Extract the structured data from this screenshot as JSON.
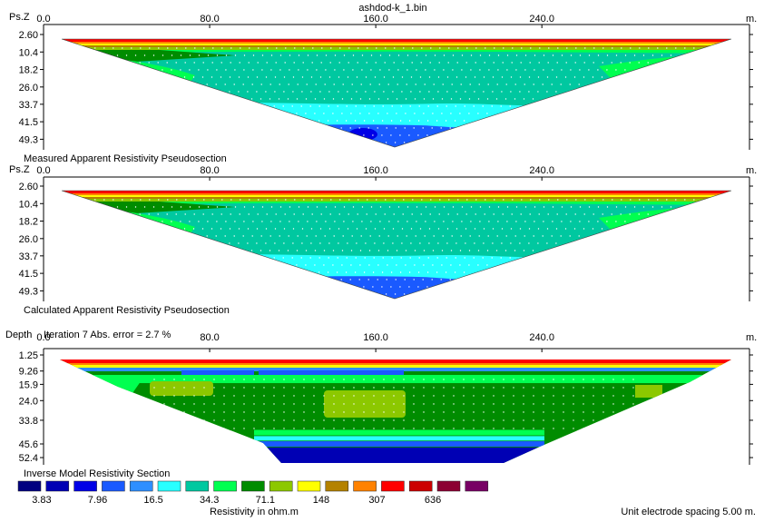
{
  "title": "ashdod-k_1.bin",
  "x_unit": "m.",
  "x_ticks": [
    "0.0",
    "80.0",
    "160.0",
    "240.0"
  ],
  "x_tick_values": [
    0,
    80,
    160,
    240
  ],
  "x_range": [
    0,
    340
  ],
  "palette": [
    "#000080",
    "#0000b4",
    "#0000e6",
    "#1a5aff",
    "#2e8fff",
    "#28ffff",
    "#00c8a0",
    "#00ff50",
    "#008c00",
    "#8cc800",
    "#ffff00",
    "#b48200",
    "#ff8200",
    "#ff0000",
    "#cc0000",
    "#8c0032",
    "#780064"
  ],
  "panels": [
    {
      "axis_label": "Ps.Z",
      "caption": "Measured Apparent Resistivity Pseudosection",
      "subtitle": "",
      "depth_ticks": [
        "2.60",
        "10.4",
        "18.2",
        "26.0",
        "33.7",
        "41.5",
        "49.3"
      ],
      "depth_values": [
        2.6,
        10.4,
        18.2,
        26.0,
        33.7,
        41.5,
        49.3
      ],
      "depth_range": [
        2.6,
        54
      ]
    },
    {
      "axis_label": "Ps.Z",
      "caption": "Calculated Apparent Resistivity Pseudosection",
      "subtitle": "",
      "depth_ticks": [
        "2.60",
        "10.4",
        "18.2",
        "26.0",
        "33.7",
        "41.5",
        "49.3"
      ],
      "depth_values": [
        2.6,
        10.4,
        18.2,
        26.0,
        33.7,
        41.5,
        49.3
      ],
      "depth_range": [
        2.6,
        54
      ]
    },
    {
      "axis_label": "Depth",
      "caption": "Inverse Model Resistivity Section",
      "subtitle": "Iteration 7 Abs. error = 2.7 %",
      "depth_ticks": [
        "1.25",
        "9.26",
        "15.9",
        "24.0",
        "33.8",
        "45.6",
        "52.4"
      ],
      "depth_values": [
        1.25,
        9.26,
        15.9,
        24.0,
        33.8,
        45.6,
        52.4
      ],
      "depth_range": [
        1.25,
        56
      ]
    }
  ],
  "legend": {
    "values": [
      "3.83",
      "7.96",
      "16.5",
      "34.3",
      "71.1",
      "148",
      "307",
      "636"
    ],
    "label": "Resistivity in ohm.m"
  },
  "footer": "Unit electrode spacing 5.00 m.",
  "chart_data": {
    "type": "heatmap",
    "title": "ashdod-k_1.bin",
    "xlabel": "m.",
    "x_ticks": [
      0,
      80,
      160,
      240
    ],
    "legend_scale": [
      3.83,
      7.96,
      16.5,
      34.3,
      71.1,
      148,
      307,
      636
    ],
    "legend_label": "Resistivity in ohm.m",
    "sections": [
      {
        "name": "Measured Apparent Resistivity Pseudosection",
        "ylabel": "Ps.Z",
        "y_ticks": [
          2.6,
          10.4,
          18.2,
          26.0,
          33.7,
          41.5,
          49.3
        ]
      },
      {
        "name": "Calculated Apparent Resistivity Pseudosection",
        "ylabel": "Ps.Z",
        "y_ticks": [
          2.6,
          10.4,
          18.2,
          26.0,
          33.7,
          41.5,
          49.3
        ]
      },
      {
        "name": "Inverse Model Resistivity Section",
        "ylabel": "Depth",
        "y_ticks": [
          1.25,
          9.26,
          15.9,
          24.0,
          33.8,
          45.6,
          52.4
        ],
        "iteration": 7,
        "abs_error_percent": 2.7
      }
    ],
    "electrode_spacing_m": 5.0
  }
}
